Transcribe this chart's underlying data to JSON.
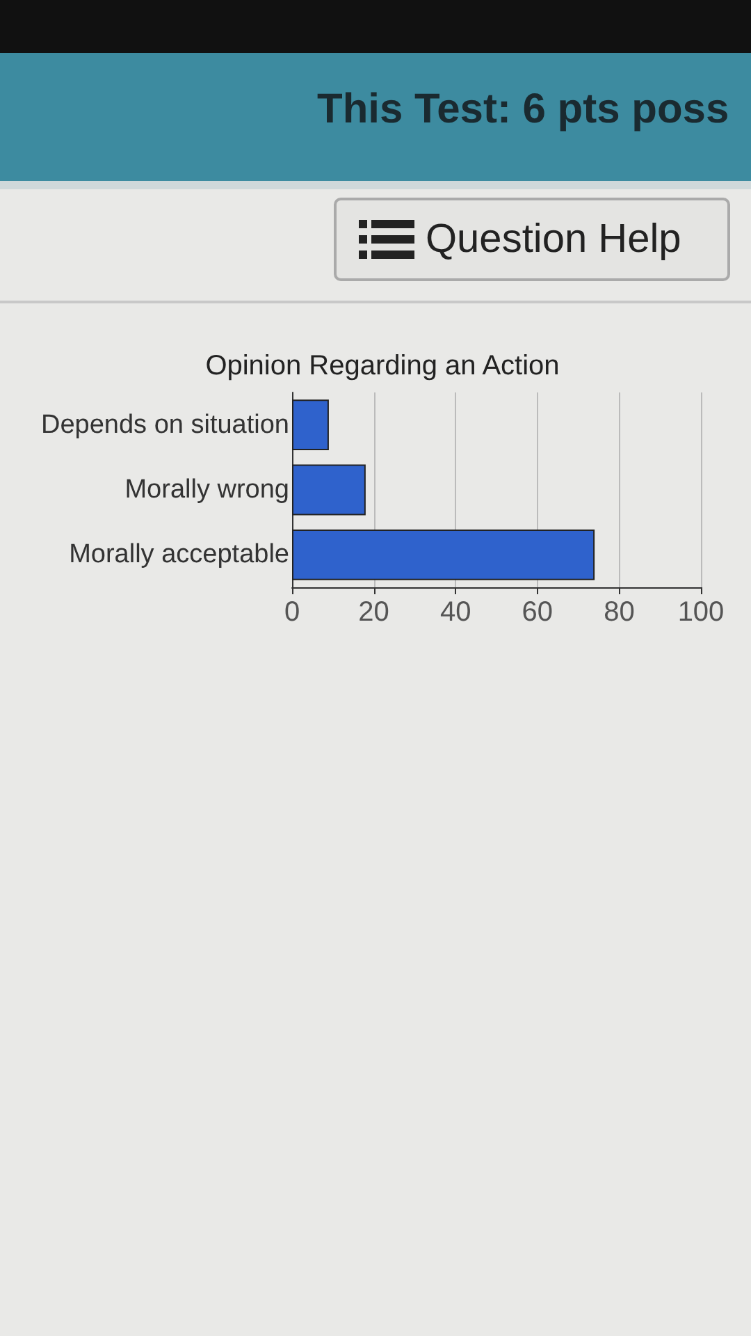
{
  "chart_data": {
    "type": "bar",
    "orientation": "horizontal",
    "title": "Opinion Regarding an Action",
    "categories": [
      "Depends on situation",
      "Morally wrong",
      "Morally acceptable"
    ],
    "values": [
      9,
      18,
      74
    ],
    "color": "#2f62cc",
    "xlim": [
      0,
      100
    ],
    "xticks": [
      0,
      20,
      40,
      60,
      80,
      100
    ],
    "grid": "x",
    "annotations": [
      "This Test: 6 pts poss",
      "Question Help"
    ]
  }
}
